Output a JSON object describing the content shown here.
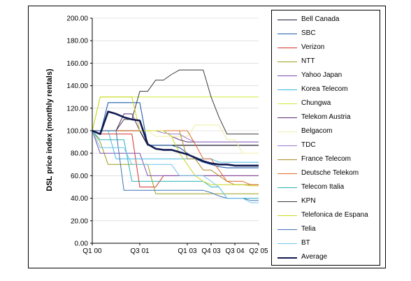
{
  "chart_data": {
    "type": "line",
    "title": "",
    "xlabel": "",
    "ylabel": "DSL price index (monthly rentals)",
    "ylim": [
      0,
      200
    ],
    "yticks": [
      "0.00",
      "20.00",
      "40.00",
      "60.00",
      "80.00",
      "100.00",
      "120.00",
      "140.00",
      "160.00",
      "180.00",
      "200.00"
    ],
    "xtick_labels": [
      {
        "label": "Q1 00",
        "q": 0
      },
      {
        "label": "Q3 01",
        "q": 6
      },
      {
        "label": "Q1 03",
        "q": 12
      },
      {
        "label": "Q4 03",
        "q": 15
      },
      {
        "label": "Q3 04",
        "q": 18
      },
      {
        "label": "Q2 05",
        "q": 21
      }
    ],
    "x": [
      0,
      1,
      2,
      3,
      4,
      5,
      6,
      7,
      8,
      9,
      10,
      11,
      12,
      13,
      14,
      15,
      16,
      17,
      18,
      19,
      20,
      21
    ],
    "legend_position": "right",
    "series": [
      {
        "name": "Bell Canada",
        "color": "#1c1c2e",
        "width": 1.3,
        "values": [
          100,
          100,
          100,
          100,
          100,
          100,
          100,
          87,
          87,
          87,
          87,
          87,
          87,
          87,
          87,
          87,
          87,
          87,
          87,
          87,
          87,
          87
        ]
      },
      {
        "name": "SBC",
        "color": "#1f5ea8",
        "width": 1.1,
        "values": [
          100,
          97,
          125,
          125,
          125,
          125,
          125,
          87,
          87,
          87,
          87,
          85,
          80,
          75,
          72,
          70,
          68,
          67,
          67,
          67,
          67,
          67
        ]
      },
      {
        "name": "Verizon",
        "color": "#d9302b",
        "width": 1,
        "values": [
          100,
          97,
          97,
          97,
          97,
          97,
          50,
          50,
          50,
          60,
          60,
          60,
          60,
          60,
          60,
          60,
          60,
          60,
          60,
          60,
          60,
          60
        ]
      },
      {
        "name": "NTT",
        "color": "#9aa018",
        "width": 1,
        "values": [
          100,
          90,
          70,
          70,
          70,
          70,
          70,
          70,
          44,
          44,
          44,
          44,
          44,
          44,
          44,
          44,
          44,
          44,
          44,
          44,
          44,
          44
        ]
      },
      {
        "name": "Yahoo Japan",
        "color": "#7a4fb0",
        "width": 1,
        "values": [
          100,
          80,
          80,
          80,
          80,
          80,
          80,
          60,
          60,
          60,
          60,
          60,
          60,
          60,
          60,
          60,
          60,
          60,
          60,
          60,
          60,
          60
        ]
      },
      {
        "name": "Korea Telecom",
        "color": "#41b6e0",
        "width": 1,
        "values": [
          100,
          100,
          100,
          75,
          75,
          75,
          75,
          75,
          75,
          75,
          75,
          75,
          75,
          75,
          75,
          75,
          72,
          72,
          72,
          72,
          72,
          72
        ]
      },
      {
        "name": "Chungwa",
        "color": "#d2ea3c",
        "width": 1,
        "values": [
          100,
          130,
          130,
          130,
          130,
          130,
          130,
          130,
          130,
          130,
          130,
          130,
          130,
          130,
          130,
          130,
          130,
          130,
          130,
          130,
          130,
          130
        ]
      },
      {
        "name": "Telekom Austria",
        "color": "#5c2a78",
        "width": 1,
        "values": [
          100,
          100,
          100,
          100,
          115,
          115,
          100,
          100,
          100,
          100,
          95,
          92,
          90,
          90,
          90,
          90,
          90,
          90,
          90,
          90,
          90,
          90
        ]
      },
      {
        "name": "Belgacom",
        "color": "#f2f0b0",
        "width": 1.2,
        "values": [
          100,
          100,
          100,
          100,
          100,
          100,
          100,
          100,
          95,
          95,
          95,
          95,
          95,
          105,
          105,
          105,
          105,
          92,
          92,
          80,
          80,
          80
        ]
      },
      {
        "name": "TDC",
        "color": "#9a78d0",
        "width": 1,
        "values": [
          100,
          100,
          100,
          100,
          100,
          100,
          100,
          100,
          100,
          98,
          97,
          97,
          93,
          90,
          90,
          90,
          90,
          90,
          90,
          90,
          90,
          90
        ]
      },
      {
        "name": "France Telecom",
        "color": "#b08a2a",
        "width": 1,
        "values": [
          100,
          100,
          100,
          100,
          100,
          100,
          100,
          100,
          100,
          100,
          100,
          100,
          75,
          75,
          65,
          65,
          60,
          55,
          52,
          52,
          52,
          52
        ]
      },
      {
        "name": "Deutsche Telekom",
        "color": "#e0692e",
        "width": 1,
        "values": [
          100,
          100,
          100,
          100,
          100,
          100,
          100,
          100,
          100,
          100,
          100,
          100,
          100,
          88,
          75,
          75,
          65,
          55,
          55,
          55,
          52,
          52
        ]
      },
      {
        "name": "Telecom Italia",
        "color": "#2ab0b8",
        "width": 1,
        "values": [
          100,
          92,
          92,
          92,
          92,
          55,
          55,
          55,
          55,
          55,
          55,
          55,
          55,
          55,
          55,
          50,
          50,
          40,
          40,
          40,
          40,
          40
        ]
      },
      {
        "name": "KPN",
        "color": "#3a3a3a",
        "width": 1,
        "values": [
          100,
          100,
          100,
          100,
          110,
          110,
          135,
          135,
          145,
          145,
          150,
          154,
          154,
          154,
          154,
          130,
          112,
          97,
          97,
          97,
          97,
          97
        ]
      },
      {
        "name": "Telefonica de Espana",
        "color": "#c8d820",
        "width": 1,
        "values": [
          100,
          130,
          130,
          130,
          130,
          130,
          100,
          100,
          100,
          100,
          95,
          80,
          70,
          60,
          55,
          52,
          52,
          52,
          52,
          52,
          51,
          51
        ]
      },
      {
        "name": "Telia",
        "color": "#3f72b5",
        "width": 1,
        "values": [
          100,
          100,
          100,
          100,
          47,
          47,
          47,
          47,
          47,
          47,
          47,
          47,
          47,
          47,
          47,
          45,
          42,
          40,
          40,
          40,
          38,
          38
        ]
      },
      {
        "name": "BT",
        "color": "#6fc4ee",
        "width": 1,
        "values": [
          100,
          85,
          85,
          85,
          85,
          70,
          70,
          70,
          70,
          70,
          70,
          60,
          60,
          60,
          60,
          55,
          50,
          40,
          40,
          40,
          36,
          36
        ]
      },
      {
        "name": "Average",
        "color": "#121a50",
        "width": 2.6,
        "values": [
          100,
          97,
          117,
          115,
          112,
          110,
          109,
          88,
          84,
          83,
          83,
          81,
          79,
          76,
          73,
          71,
          70,
          70,
          69,
          69,
          69,
          69
        ]
      }
    ]
  }
}
